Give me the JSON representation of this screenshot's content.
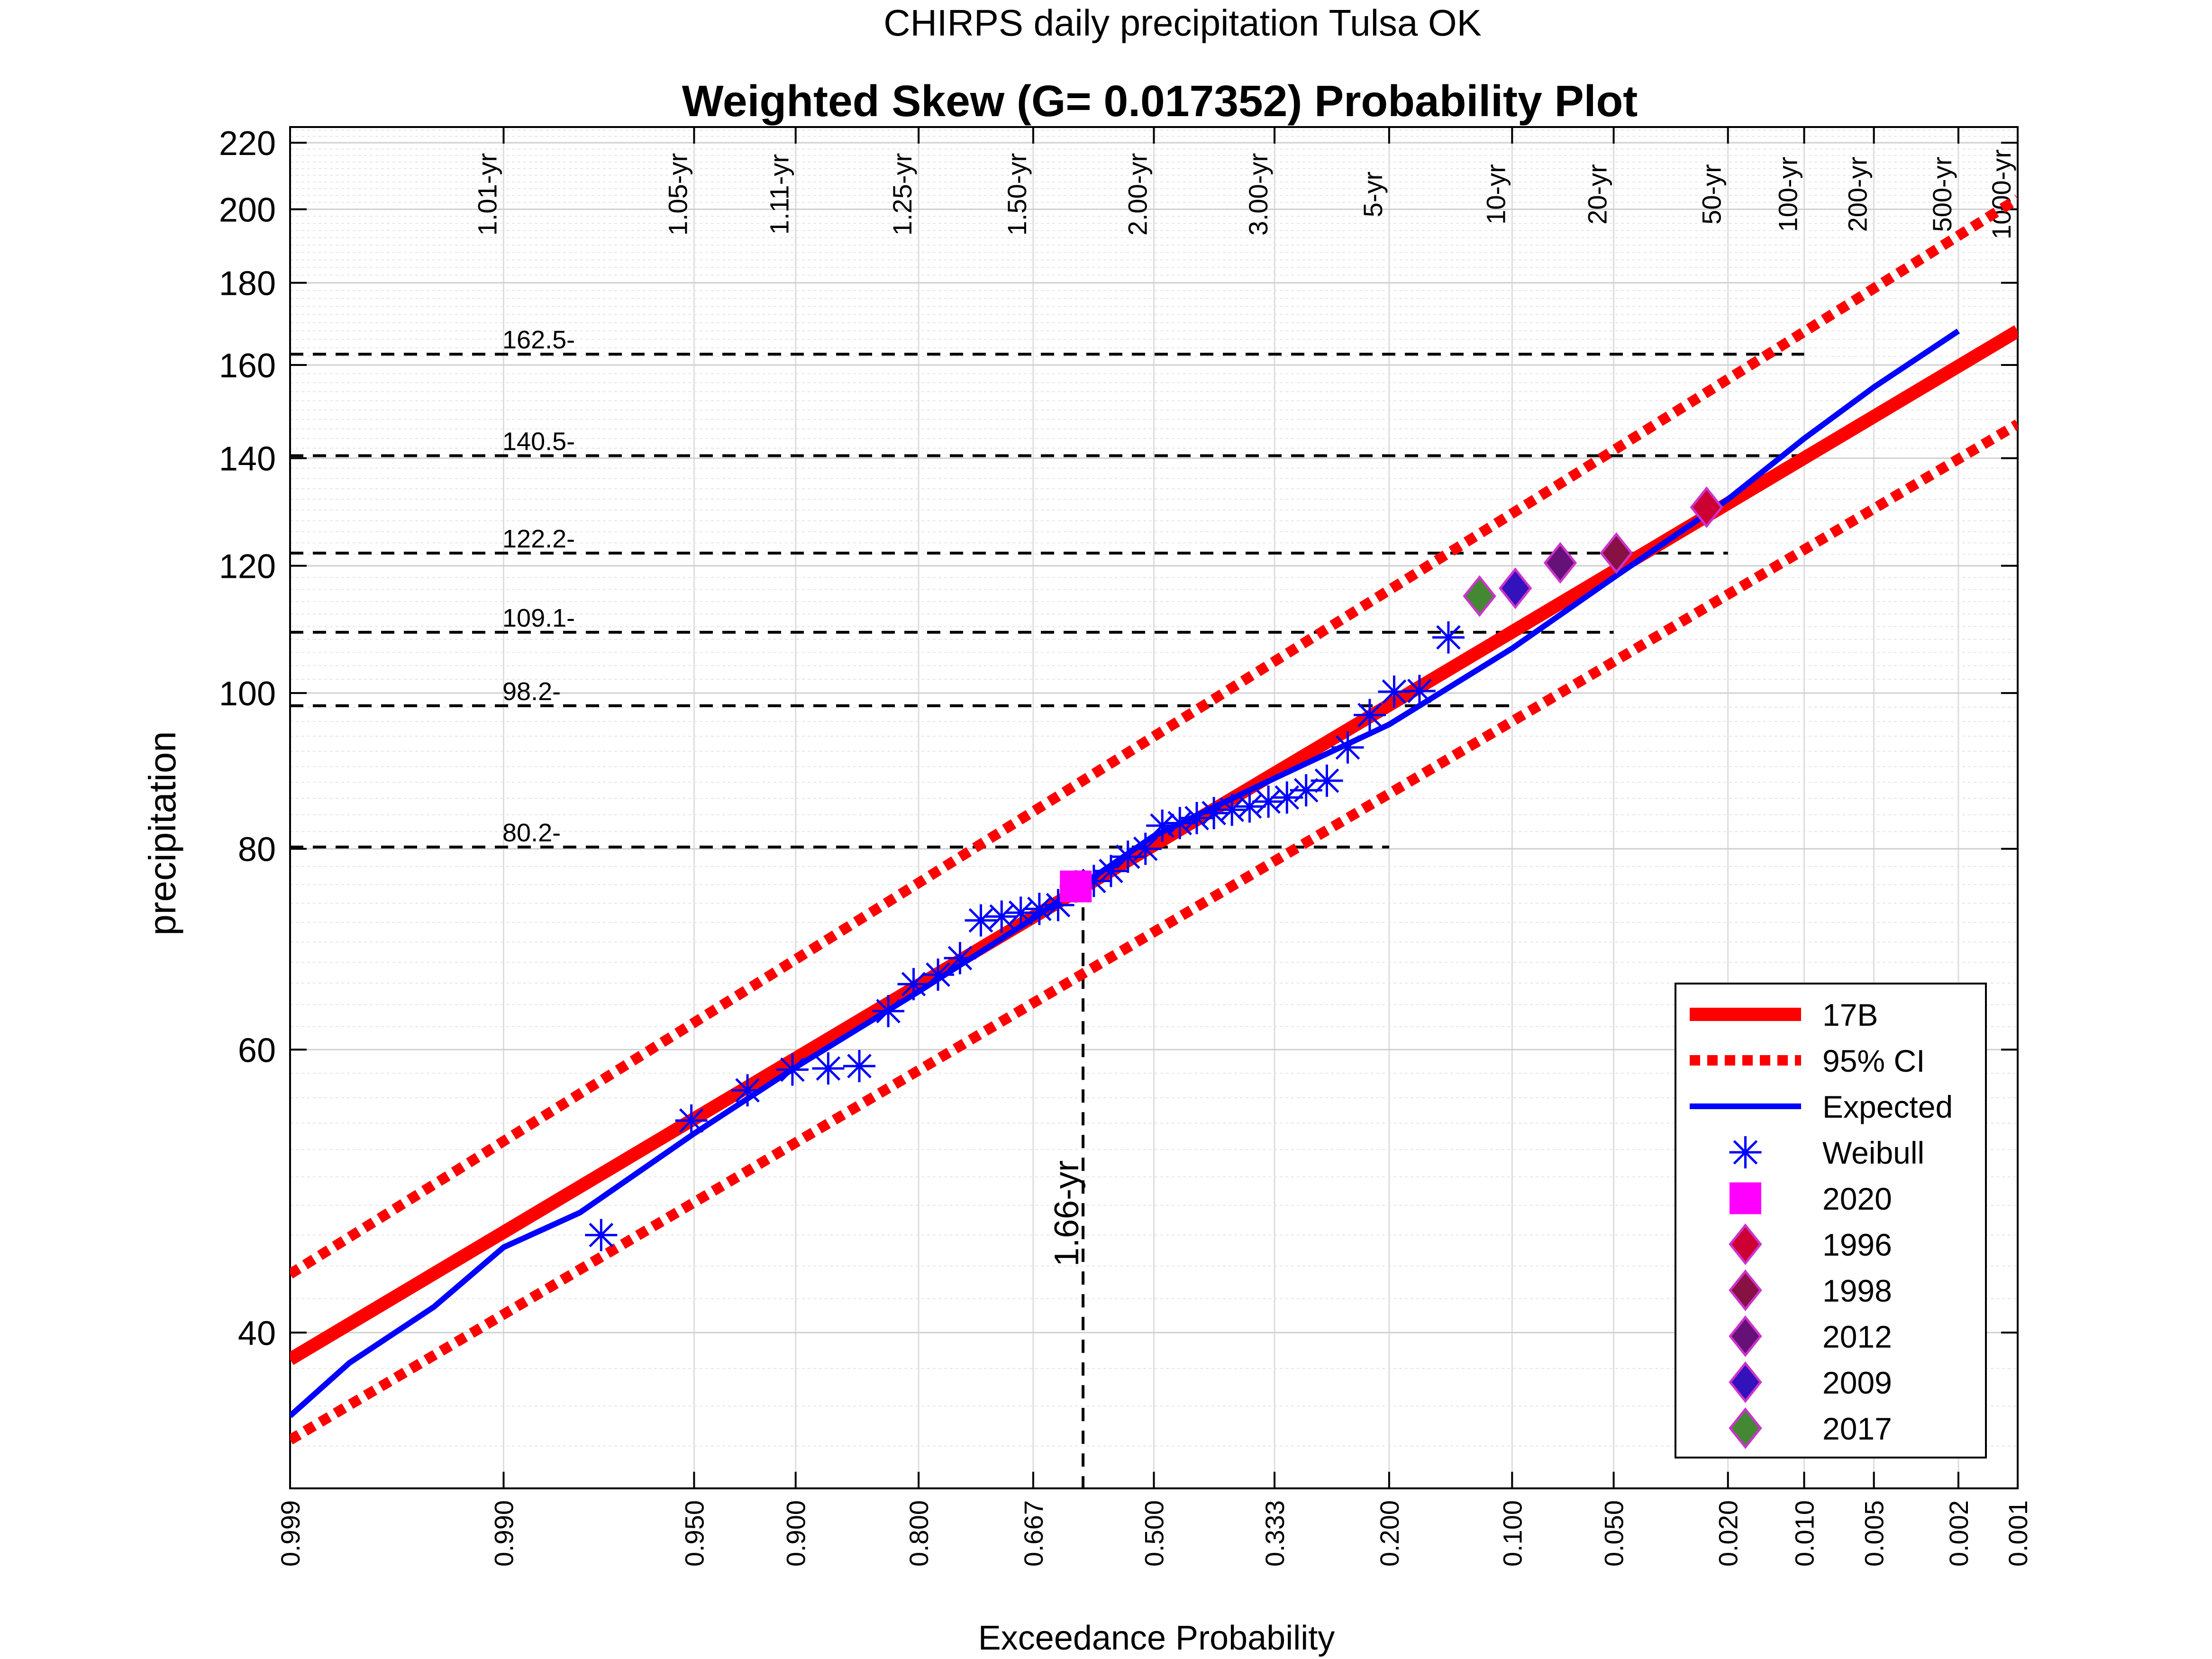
{
  "chart_data": {
    "type": "scatter",
    "suptitle": "CHIRPS daily precipitation Tulsa OK",
    "title": "Weighted Skew (G= 0.017352) Probability Plot",
    "xlabel": "Exceedance Probability",
    "ylabel": "precipitation",
    "x_scale": "normal-probability (reversed)",
    "y_scale": "log",
    "ylim": [
      32,
      225
    ],
    "xlim": [
      0.999,
      0.001
    ],
    "grid": true,
    "legend_position": "bottom-right",
    "x_ticks": [
      {
        "p": 0.999,
        "label": "0.999"
      },
      {
        "p": 0.99,
        "label": "0.990"
      },
      {
        "p": 0.95,
        "label": "0.950"
      },
      {
        "p": 0.9,
        "label": "0.900"
      },
      {
        "p": 0.8,
        "label": "0.800"
      },
      {
        "p": 0.667,
        "label": "0.667"
      },
      {
        "p": 0.5,
        "label": "0.500"
      },
      {
        "p": 0.333,
        "label": "0.333"
      },
      {
        "p": 0.2,
        "label": "0.200"
      },
      {
        "p": 0.1,
        "label": "0.100"
      },
      {
        "p": 0.05,
        "label": "0.050"
      },
      {
        "p": 0.02,
        "label": "0.020"
      },
      {
        "p": 0.01,
        "label": "0.010"
      },
      {
        "p": 0.005,
        "label": "0.005"
      },
      {
        "p": 0.002,
        "label": "0.002"
      },
      {
        "p": 0.001,
        "label": "0.001"
      }
    ],
    "y_ticks": [
      {
        "v": 40,
        "label": "40"
      },
      {
        "v": 60,
        "label": "60"
      },
      {
        "v": 80,
        "label": "80"
      },
      {
        "v": 100,
        "label": "100"
      },
      {
        "v": 120,
        "label": "120"
      },
      {
        "v": 140,
        "label": "140"
      },
      {
        "v": 160,
        "label": "160"
      },
      {
        "v": 180,
        "label": "180"
      },
      {
        "v": 200,
        "label": "200"
      },
      {
        "v": 220,
        "label": "220"
      }
    ],
    "return_period_labels": [
      {
        "p": 0.99,
        "label": "1.01-yr"
      },
      {
        "p": 0.95,
        "label": "1.05-yr"
      },
      {
        "p": 0.9,
        "label": "1.11-yr"
      },
      {
        "p": 0.8,
        "label": "1.25-yr"
      },
      {
        "p": 0.667,
        "label": "1.50-yr"
      },
      {
        "p": 0.5,
        "label": "2.00-yr"
      },
      {
        "p": 0.333,
        "label": "3.00-yr"
      },
      {
        "p": 0.2,
        "label": "5-yr"
      },
      {
        "p": 0.1,
        "label": "10-yr"
      },
      {
        "p": 0.05,
        "label": "20-yr"
      },
      {
        "p": 0.02,
        "label": "50-yr"
      },
      {
        "p": 0.01,
        "label": "100-yr"
      },
      {
        "p": 0.005,
        "label": "200-yr"
      },
      {
        "p": 0.002,
        "label": "500-yr"
      },
      {
        "p": 0.001,
        "label": "1000-yr"
      }
    ],
    "reference_lines": [
      {
        "value": 162.5,
        "label": "162.5-",
        "p_end": 0.01
      },
      {
        "value": 140.5,
        "label": "140.5-",
        "p_end": 0.01
      },
      {
        "value": 122.2,
        "label": "122.2-",
        "p_end": 0.02
      },
      {
        "value": 109.1,
        "label": "109.1-",
        "p_end": 0.05
      },
      {
        "value": 98.2,
        "label": "98.2-",
        "p_end": 0.1
      },
      {
        "value": 80.2,
        "label": "80.2-",
        "p_end": 0.2
      }
    ],
    "marker_line": {
      "p": 0.6,
      "y_top": 76,
      "label": "1.66-yr"
    },
    "series": [
      {
        "name": "17B",
        "style": "solid",
        "color": "#ff0000",
        "x": [
          0.999,
          0.001
        ],
        "y": [
          38.5,
          168
        ]
      },
      {
        "name": "95% CI",
        "style": "dotted",
        "color": "#ff0000",
        "x": [
          0.999,
          0.001
        ],
        "y": [
          43.5,
          203
        ]
      },
      {
        "name": "95% CI",
        "style": "dotted",
        "color": "#ff0000",
        "x": [
          0.999,
          0.001
        ],
        "y": [
          34.3,
          147
        ]
      },
      {
        "name": "Expected",
        "style": "solid",
        "color": "#0000ff",
        "x": [
          0.999,
          0.998,
          0.995,
          0.99,
          0.98,
          0.95,
          0.9,
          0.8,
          0.667,
          0.5,
          0.333,
          0.2,
          0.1,
          0.05,
          0.02,
          0.01,
          0.005,
          0.002
        ],
        "y": [
          35.5,
          38.3,
          41.5,
          45.2,
          47.5,
          53.2,
          58.5,
          65.2,
          72.4,
          81.5,
          88.5,
          95.6,
          106.6,
          118.0,
          132.0,
          144.0,
          155.0,
          168.0
        ]
      },
      {
        "name": "Weibull",
        "style": "marker",
        "color": "#0000ff",
        "x": [
          0.976,
          0.951,
          0.927,
          0.902,
          0.878,
          0.854,
          0.829,
          0.805,
          0.78,
          0.756,
          0.732,
          0.707,
          0.683,
          0.659,
          0.634,
          0.61,
          0.585,
          0.561,
          0.537,
          0.512,
          0.488,
          0.463,
          0.439,
          0.415,
          0.39,
          0.366,
          0.341,
          0.317,
          0.293,
          0.268,
          0.244,
          0.22,
          0.195,
          0.171,
          0.146
        ],
        "y": [
          46.0,
          54.2,
          56.6,
          58.3,
          58.4,
          58.6,
          63.4,
          65.9,
          66.8,
          68.4,
          72.2,
          72.6,
          73.0,
          73.4,
          73.8,
          75.8,
          76.4,
          77.5,
          79.1,
          80.0,
          82.7,
          83.0,
          83.6,
          84.2,
          84.6,
          85.0,
          85.6,
          86.1,
          87.0,
          88.2,
          92.5,
          96.9,
          100.2,
          100.3,
          108.3
        ]
      },
      {
        "name": "2020",
        "style": "square",
        "color": "#ff00ff",
        "x": [
          0.61
        ],
        "y": [
          75.8
        ]
      },
      {
        "name": "1996",
        "style": "diamond",
        "color": "#cc0033",
        "x": [
          0.024
        ],
        "y": [
          130.5
        ]
      },
      {
        "name": "1998",
        "style": "diamond",
        "color": "#881144",
        "x": [
          0.049
        ],
        "y": [
          122.2
        ]
      },
      {
        "name": "2012",
        "style": "diamond",
        "color": "#661177",
        "x": [
          0.073
        ],
        "y": [
          120.5
        ]
      },
      {
        "name": "2009",
        "style": "diamond",
        "color": "#3311bb",
        "x": [
          0.098
        ],
        "y": [
          116.2
        ]
      },
      {
        "name": "2017",
        "style": "diamond",
        "color": "#448833",
        "x": [
          0.122
        ],
        "y": [
          114.9
        ]
      }
    ]
  }
}
